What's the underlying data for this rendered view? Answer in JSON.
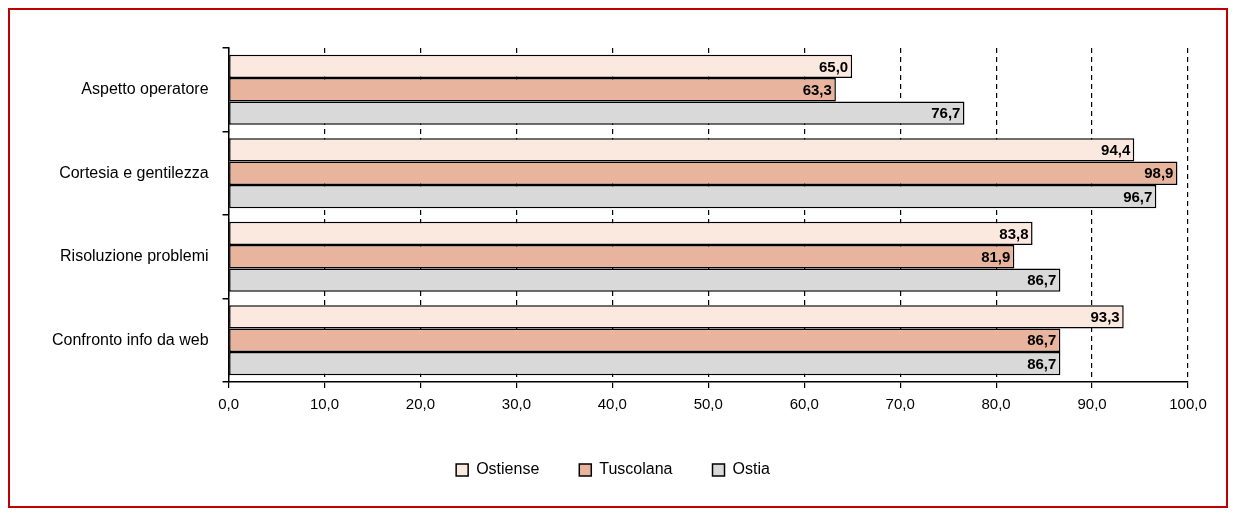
{
  "chart_data": {
    "type": "bar",
    "orientation": "horizontal",
    "categories": [
      "Aspetto operatore",
      "Cortesia e gentilezza",
      "Risoluzione problemi",
      "Confronto info da web"
    ],
    "series": [
      {
        "name": "Ostiense",
        "color": "#fbe9df",
        "values": [
          65.0,
          94.4,
          83.8,
          93.3
        ],
        "value_labels": [
          "65,0",
          "94,4",
          "83,8",
          "93,3"
        ]
      },
      {
        "name": "Tuscolana",
        "color": "#e8b49e",
        "values": [
          63.3,
          98.9,
          81.9,
          86.7
        ],
        "value_labels": [
          "63,3",
          "98,9",
          "81,9",
          "86,7"
        ]
      },
      {
        "name": "Ostia",
        "color": "#d9d9d9",
        "values": [
          76.7,
          96.7,
          86.7,
          86.7
        ],
        "value_labels": [
          "76,7",
          "96,7",
          "86,7",
          "86,7"
        ]
      }
    ],
    "xlim": [
      0,
      100
    ],
    "xticks": [
      {
        "value": 0,
        "label": "0,0"
      },
      {
        "value": 10,
        "label": "10,0"
      },
      {
        "value": 20,
        "label": "20,0"
      },
      {
        "value": 30,
        "label": "30,0"
      },
      {
        "value": 40,
        "label": "40,0"
      },
      {
        "value": 50,
        "label": "50,0"
      },
      {
        "value": 60,
        "label": "60,0"
      },
      {
        "value": 70,
        "label": "70,0"
      },
      {
        "value": 80,
        "label": "80,0"
      },
      {
        "value": 90,
        "label": "90,0"
      },
      {
        "value": 100,
        "label": "100,0"
      }
    ],
    "grid": "x",
    "legend": "bottom"
  }
}
